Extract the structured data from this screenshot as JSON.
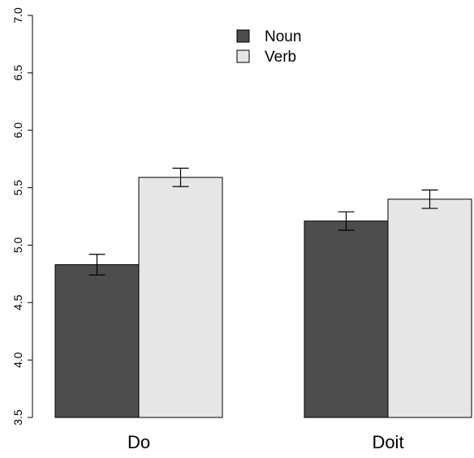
{
  "chart_data": {
    "type": "bar",
    "categories": [
      "Do",
      "Doit"
    ],
    "series": [
      {
        "name": "Noun",
        "color": "#4d4d4d",
        "values": [
          4.83,
          5.21
        ],
        "err_low": [
          4.74,
          5.13
        ],
        "err_high": [
          4.92,
          5.29
        ]
      },
      {
        "name": "Verb",
        "color": "#e6e6e6",
        "values": [
          5.59,
          5.4
        ],
        "err_low": [
          5.51,
          5.32
        ],
        "err_high": [
          5.67,
          5.48
        ]
      }
    ],
    "ylim": [
      3.5,
      7.0
    ],
    "yticks": [
      "3.5",
      "4.0",
      "4.5",
      "5.0",
      "5.5",
      "6.0",
      "6.5",
      "7.0"
    ],
    "title": "",
    "xlabel": "",
    "ylabel": "",
    "legend_position": "top-center",
    "grid": false
  }
}
